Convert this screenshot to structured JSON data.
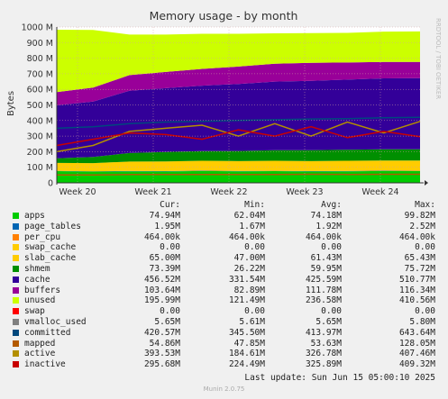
{
  "chart_data": {
    "type": "area",
    "title": "Memory usage - by month",
    "ylabel": "Bytes",
    "side_label": "RRDTOOL / TOBI OETIKER",
    "ylim": [
      0,
      1000
    ],
    "y_ticks": [
      "0",
      "100 M",
      "200 M",
      "300 M",
      "400 M",
      "500 M",
      "600 M",
      "700 M",
      "800 M",
      "900 M",
      "1000 M"
    ],
    "x_ticks": [
      "Week 20",
      "Week 21",
      "Week 22",
      "Week 23",
      "Week 24"
    ],
    "grid": true,
    "legend_placement": "bottom",
    "x": [
      0,
      10,
      20,
      30,
      40,
      50,
      60,
      70,
      80,
      90,
      100
    ],
    "stacked_series": [
      {
        "name": "apps",
        "color": "#00cc00",
        "values": [
          75,
          72,
          74,
          73,
          76,
          74,
          75,
          73,
          74,
          76,
          75
        ]
      },
      {
        "name": "page_tables",
        "color": "#0066b3",
        "values": [
          2,
          2,
          2,
          2,
          2,
          2,
          2,
          2,
          2,
          2,
          2
        ]
      },
      {
        "name": "per_cpu",
        "color": "#ff8000",
        "values": [
          0.5,
          0.5,
          0.5,
          0.5,
          0.5,
          0.5,
          0.5,
          0.5,
          0.5,
          0.5,
          0.5
        ]
      },
      {
        "name": "swap_cache",
        "color": "#ffcc00",
        "values": [
          0,
          0,
          0,
          0,
          0,
          0,
          0,
          0,
          0,
          0,
          0
        ]
      },
      {
        "name": "slab_cache",
        "color": "#ffcc00",
        "values": [
          50,
          52,
          60,
          62,
          63,
          63,
          64,
          64,
          65,
          65,
          65
        ]
      },
      {
        "name": "shmem",
        "color": "#008f00",
        "values": [
          30,
          40,
          55,
          60,
          62,
          65,
          68,
          70,
          71,
          72,
          73
        ]
      },
      {
        "name": "cache",
        "color": "#330099",
        "values": [
          340,
          355,
          400,
          410,
          420,
          430,
          440,
          445,
          450,
          455,
          456
        ]
      },
      {
        "name": "buffers",
        "color": "#990099",
        "values": [
          85,
          90,
          100,
          104,
          108,
          112,
          115,
          116,
          110,
          105,
          104
        ]
      },
      {
        "name": "unused",
        "color": "#ccff00",
        "values": [
          400,
          370,
          260,
          240,
          225,
          210,
          195,
          190,
          190,
          195,
          196
        ]
      }
    ],
    "line_series": [
      {
        "name": "committed",
        "color": "#00487d",
        "values": [
          350,
          360,
          380,
          390,
          395,
          400,
          405,
          410,
          412,
          418,
          420
        ]
      },
      {
        "name": "mapped",
        "color": "#b35a00",
        "values": [
          50,
          51,
          53,
          54,
          54,
          53,
          54,
          55,
          54,
          55,
          55
        ]
      },
      {
        "name": "active",
        "color": "#b38f00",
        "values": [
          200,
          240,
          330,
          350,
          370,
          300,
          380,
          300,
          390,
          320,
          394
        ]
      },
      {
        "name": "inactive",
        "color": "#c80000",
        "values": [
          240,
          280,
          320,
          310,
          280,
          340,
          300,
          360,
          290,
          330,
          296
        ]
      }
    ]
  },
  "legend": {
    "headers": [
      "Cur:",
      "Min:",
      "Avg:",
      "Max:"
    ],
    "rows": [
      {
        "name": "apps",
        "color": "#00cc00",
        "cur": "74.94M",
        "min": "62.04M",
        "avg": "74.18M",
        "max": "99.82M"
      },
      {
        "name": "page_tables",
        "color": "#0066b3",
        "cur": "1.95M",
        "min": "1.67M",
        "avg": "1.92M",
        "max": "2.52M"
      },
      {
        "name": "per_cpu",
        "color": "#ff8000",
        "cur": "464.00k",
        "min": "464.00k",
        "avg": "464.00k",
        "max": "464.00k"
      },
      {
        "name": "swap_cache",
        "color": "#ffcc00",
        "cur": "0.00",
        "min": "0.00",
        "avg": "0.00",
        "max": "0.00"
      },
      {
        "name": "slab_cache",
        "color": "#ffcc00",
        "cur": "65.00M",
        "min": "47.00M",
        "avg": "61.43M",
        "max": "65.43M"
      },
      {
        "name": "shmem",
        "color": "#008f00",
        "cur": "73.39M",
        "min": "26.22M",
        "avg": "59.95M",
        "max": "75.72M"
      },
      {
        "name": "cache",
        "color": "#330099",
        "cur": "456.52M",
        "min": "331.54M",
        "avg": "425.59M",
        "max": "510.77M"
      },
      {
        "name": "buffers",
        "color": "#990099",
        "cur": "103.64M",
        "min": "82.89M",
        "avg": "111.78M",
        "max": "116.34M"
      },
      {
        "name": "unused",
        "color": "#ccff00",
        "cur": "195.99M",
        "min": "121.49M",
        "avg": "236.58M",
        "max": "410.56M"
      },
      {
        "name": "swap",
        "color": "#ff0000",
        "cur": "0.00",
        "min": "0.00",
        "avg": "0.00",
        "max": "0.00"
      },
      {
        "name": "vmalloc_used",
        "color": "#808080",
        "cur": "5.65M",
        "min": "5.61M",
        "avg": "5.65M",
        "max": "5.80M"
      },
      {
        "name": "committed",
        "color": "#00487d",
        "cur": "420.57M",
        "min": "345.50M",
        "avg": "413.97M",
        "max": "643.64M"
      },
      {
        "name": "mapped",
        "color": "#b35a00",
        "cur": "54.86M",
        "min": "47.85M",
        "avg": "53.63M",
        "max": "128.05M"
      },
      {
        "name": "active",
        "color": "#b38f00",
        "cur": "393.53M",
        "min": "184.61M",
        "avg": "326.78M",
        "max": "407.46M"
      },
      {
        "name": "inactive",
        "color": "#c80000",
        "cur": "295.68M",
        "min": "224.49M",
        "avg": "325.89M",
        "max": "409.32M"
      }
    ]
  },
  "footer": {
    "last_update": "Last update: Sun Jun 15 05:00:10 2025",
    "munin": "Munin 2.0.75"
  }
}
